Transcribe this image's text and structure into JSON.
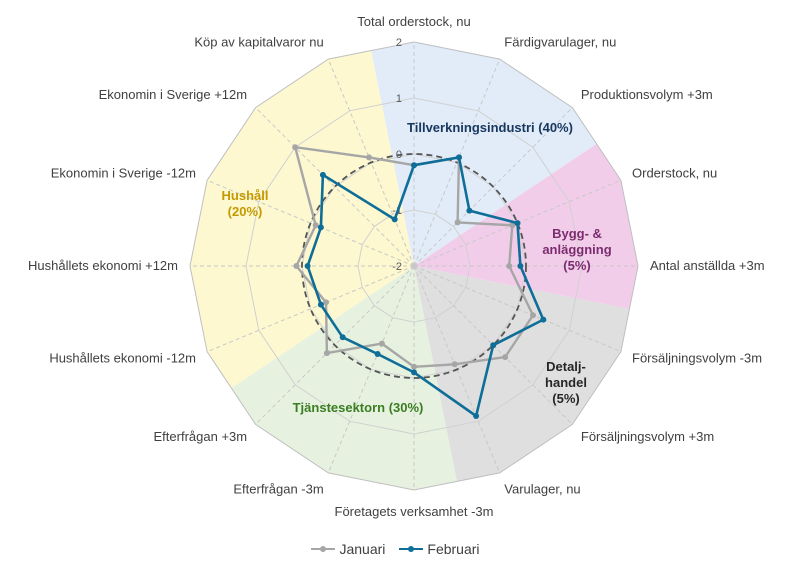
{
  "chart_data": {
    "type": "radar",
    "title": "",
    "rlim": [
      -2,
      2
    ],
    "ticks": [
      "2",
      "1",
      "0",
      "-1",
      "-2"
    ],
    "reference_circle": 0,
    "categories": [
      "Total orderstock, nu",
      "Färdigvarulager, nu",
      "Produktionsvolym +3m",
      "Orderstock, nu",
      "Antal anställda +3m",
      "Försäljningsvolym -3m",
      "Försäljningsvolym +3m",
      "Varulager, nu",
      "Företagets verksamhet -3m",
      "Efterfrågan -3m",
      "Efterfrågan +3m",
      "Hushållets ekonomi -12m",
      "Hushållets ekonomi +12m",
      "Ekonomin i Sverige -12m",
      "Ekonomin i Sverige +12m",
      "Köp av kapitalvaror nu"
    ],
    "series": [
      {
        "name": "Januari",
        "color": "#a6a6a6",
        "values": [
          -0.2,
          0.1,
          -0.9,
          -0.1,
          -0.3,
          0.3,
          0.3,
          -0.1,
          -0.2,
          -0.5,
          0.2,
          -0.3,
          0.1,
          -0.1,
          1.0,
          0.1
        ]
      },
      {
        "name": "Februari",
        "color": "#0f6e98",
        "values": [
          -0.2,
          0.1,
          -0.6,
          0.0,
          -0.1,
          0.5,
          0.0,
          0.9,
          -0.1,
          -0.3,
          -0.2,
          -0.2,
          -0.1,
          -0.2,
          0.3,
          -1.1
        ]
      }
    ],
    "sectors": [
      {
        "label": "Tillverkningsindustri (40%)",
        "color": "#17375e",
        "fill": "#dce9f7",
        "start": 0,
        "count": 3
      },
      {
        "label_lines": [
          "Bygg- &",
          "anläggning",
          "(5%)"
        ],
        "color": "#7b2c6e",
        "fill": "#f0c4e6",
        "start": 3,
        "count": 2
      },
      {
        "label_lines": [
          "Detalj-",
          "handel",
          "(5%)"
        ],
        "color": "#262626",
        "fill": "#d9d9d9",
        "start": 5,
        "count": 3
      },
      {
        "label": "Tjänstesektorn (30%)",
        "color": "#3a7d22",
        "fill": "#e2f0d9",
        "start": 8,
        "count": 3
      },
      {
        "label_lines": [
          "Hushåll",
          "(20%)"
        ],
        "color": "#c49a00",
        "fill": "#fdf7c8",
        "start": 11,
        "count": 5
      }
    ],
    "legend": {
      "position": "bottom"
    }
  }
}
